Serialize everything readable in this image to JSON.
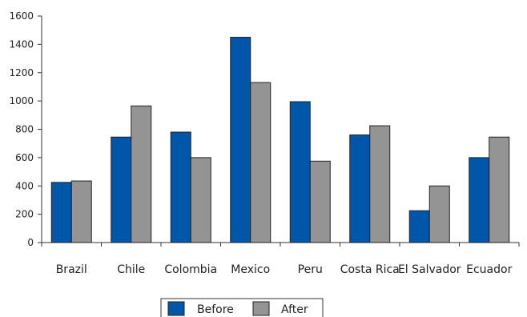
{
  "chart_data": {
    "type": "bar",
    "categories": [
      "Brazil",
      "Chile",
      "Colombia",
      "Mexico",
      "Peru",
      "Costa Rica",
      "El Salvador",
      "Ecuador"
    ],
    "series": [
      {
        "name": "Before",
        "color": "#0056a8",
        "values": [
          425,
          745,
          780,
          1450,
          995,
          760,
          225,
          600
        ]
      },
      {
        "name": "After",
        "color": "#949494",
        "values": [
          435,
          965,
          600,
          1130,
          575,
          825,
          400,
          745
        ]
      }
    ],
    "ylim": [
      0,
      1600
    ],
    "yticks": [
      0,
      200,
      400,
      600,
      800,
      1000,
      1200,
      1400,
      1600
    ],
    "legend_position": "bottom-center",
    "grid": false
  }
}
